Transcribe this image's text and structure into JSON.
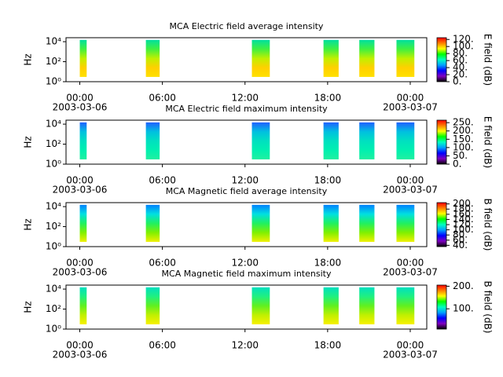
{
  "chart_data": [
    {
      "type": "spectrogram",
      "title": "MCA  Electric field average intensity",
      "y_label": "Hz",
      "colorbar_label": "E field (dB)",
      "xlim": [
        -1,
        25.2
      ],
      "xticks": [
        {
          "value": 0,
          "label": "00:00"
        },
        {
          "value": 6,
          "label": "06:00"
        },
        {
          "value": 12,
          "label": "12:00"
        },
        {
          "value": 18,
          "label": "18:00"
        },
        {
          "value": 24,
          "label": "00:00"
        }
      ],
      "date_labels": [
        {
          "value": 0,
          "label": "2003-03-06"
        },
        {
          "value": 24,
          "label": "2003-03-07"
        }
      ],
      "ylim": [
        1,
        25000
      ],
      "log_y": true,
      "yticks": [
        {
          "value": 1,
          "label": "10⁰"
        },
        {
          "value": 100,
          "label": "10²"
        },
        {
          "value": 10000,
          "label": "10⁴"
        }
      ],
      "clim": [
        0,
        125
      ],
      "cticks": [
        {
          "value": 0,
          "label": "0."
        },
        {
          "value": 20,
          "label": "20."
        },
        {
          "value": 40,
          "label": "40."
        },
        {
          "value": 60,
          "label": "60."
        },
        {
          "value": 80,
          "label": "80."
        },
        {
          "value": 100,
          "label": "100."
        },
        {
          "value": 120,
          "label": "120."
        }
      ],
      "intervals": [
        [
          0,
          0.5
        ],
        [
          4.8,
          5.8
        ],
        [
          12.5,
          13.8
        ],
        [
          17.7,
          18.8
        ],
        [
          20.3,
          21.4
        ],
        [
          23,
          24.3
        ]
      ],
      "freq_range": [
        3,
        15000
      ],
      "spectrum_colors": [
        "#00e0a0",
        "#40f040",
        "#c0f000",
        "#ffd000",
        "#ffe000"
      ]
    },
    {
      "type": "spectrogram",
      "title": "MCA  Electric field maximum intensity",
      "y_label": "Hz",
      "colorbar_label": "E field (dB)",
      "xlim": [
        -1,
        25.2
      ],
      "xticks": [
        {
          "value": 0,
          "label": "00:00"
        },
        {
          "value": 6,
          "label": "06:00"
        },
        {
          "value": 12,
          "label": "12:00"
        },
        {
          "value": 18,
          "label": "18:00"
        },
        {
          "value": 24,
          "label": "00:00"
        }
      ],
      "date_labels": [
        {
          "value": 0,
          "label": "2003-03-06"
        },
        {
          "value": 24,
          "label": "2003-03-07"
        }
      ],
      "ylim": [
        1,
        25000
      ],
      "log_y": true,
      "yticks": [
        {
          "value": 1,
          "label": "10⁰"
        },
        {
          "value": 100,
          "label": "10²"
        },
        {
          "value": 10000,
          "label": "10⁴"
        }
      ],
      "clim": [
        0,
        265
      ],
      "cticks": [
        {
          "value": 0,
          "label": "0."
        },
        {
          "value": 50,
          "label": "50."
        },
        {
          "value": 100,
          "label": "100."
        },
        {
          "value": 150,
          "label": "150."
        },
        {
          "value": 200,
          "label": "200."
        },
        {
          "value": 250,
          "label": "250."
        }
      ],
      "intervals": [
        [
          0,
          0.5
        ],
        [
          4.8,
          5.8
        ],
        [
          12.5,
          13.8
        ],
        [
          17.7,
          18.8
        ],
        [
          20.3,
          21.4
        ],
        [
          23,
          24.3
        ]
      ],
      "freq_range": [
        3,
        15000
      ],
      "spectrum_colors": [
        "#2060ff",
        "#00c0e0",
        "#00e0c0",
        "#00f0b0",
        "#20f0a0"
      ]
    },
    {
      "type": "spectrogram",
      "title": "MCA  Magnetic field average intensity",
      "y_label": "Hz",
      "colorbar_label": "B field (dB)",
      "xlim": [
        -1,
        25.2
      ],
      "xticks": [
        {
          "value": 0,
          "label": "00:00"
        },
        {
          "value": 6,
          "label": "06:00"
        },
        {
          "value": 12,
          "label": "12:00"
        },
        {
          "value": 18,
          "label": "18:00"
        },
        {
          "value": 24,
          "label": "00:00"
        }
      ],
      "date_labels": [
        {
          "value": 0,
          "label": "2003-03-06"
        },
        {
          "value": 24,
          "label": "2003-03-07"
        }
      ],
      "ylim": [
        1,
        25000
      ],
      "log_y": true,
      "yticks": [
        {
          "value": 1,
          "label": "10⁰"
        },
        {
          "value": 100,
          "label": "10²"
        },
        {
          "value": 10000,
          "label": "10⁴"
        }
      ],
      "clim": [
        35,
        205
      ],
      "cticks": [
        {
          "value": 40,
          "label": "40."
        },
        {
          "value": 60,
          "label": "60."
        },
        {
          "value": 80,
          "label": "80."
        },
        {
          "value": 100,
          "label": "100."
        },
        {
          "value": 120,
          "label": "120."
        },
        {
          "value": 140,
          "label": "140."
        },
        {
          "value": 160,
          "label": "160."
        },
        {
          "value": 180,
          "label": "180."
        },
        {
          "value": 200,
          "label": "200."
        }
      ],
      "intervals": [
        [
          0,
          0.5
        ],
        [
          4.8,
          5.8
        ],
        [
          12.5,
          13.8
        ],
        [
          17.7,
          18.8
        ],
        [
          20.3,
          21.4
        ],
        [
          23,
          24.3
        ]
      ],
      "freq_range": [
        3,
        15000
      ],
      "spectrum_colors": [
        "#0080ff",
        "#00e0e0",
        "#20f060",
        "#80f000",
        "#f0f000"
      ]
    },
    {
      "type": "spectrogram",
      "title": "MCA  Magnetic field maximum intensity",
      "y_label": "Hz",
      "colorbar_label": "B field (dB)",
      "xlim": [
        -1,
        25.2
      ],
      "xticks": [
        {
          "value": 0,
          "label": "00:00"
        },
        {
          "value": 6,
          "label": "06:00"
        },
        {
          "value": 12,
          "label": "12:00"
        },
        {
          "value": 18,
          "label": "18:00"
        },
        {
          "value": 24,
          "label": "00:00"
        }
      ],
      "date_labels": [
        {
          "value": 0,
          "label": "2003-03-06"
        },
        {
          "value": 24,
          "label": "2003-03-07"
        }
      ],
      "ylim": [
        1,
        25000
      ],
      "log_y": true,
      "yticks": [
        {
          "value": 1,
          "label": "10⁰"
        },
        {
          "value": 100,
          "label": "10²"
        },
        {
          "value": 10000,
          "label": "10⁴"
        }
      ],
      "clim": [
        10,
        205
      ],
      "cticks": [
        {
          "value": 100,
          "label": "100."
        },
        {
          "value": 200,
          "label": "200."
        }
      ],
      "intervals": [
        [
          0,
          0.5
        ],
        [
          4.8,
          5.8
        ],
        [
          12.5,
          13.8
        ],
        [
          17.7,
          18.8
        ],
        [
          20.3,
          21.4
        ],
        [
          23,
          24.3
        ]
      ],
      "freq_range": [
        3,
        15000
      ],
      "spectrum_colors": [
        "#00e0c0",
        "#20f080",
        "#60f020",
        "#c0f000",
        "#f8f000"
      ]
    }
  ],
  "colormap": [
    "#000000",
    "#8000c0",
    "#0000ff",
    "#00a0ff",
    "#00ffc0",
    "#00ff00",
    "#ffff00",
    "#ff8000",
    "#ff0000"
  ]
}
